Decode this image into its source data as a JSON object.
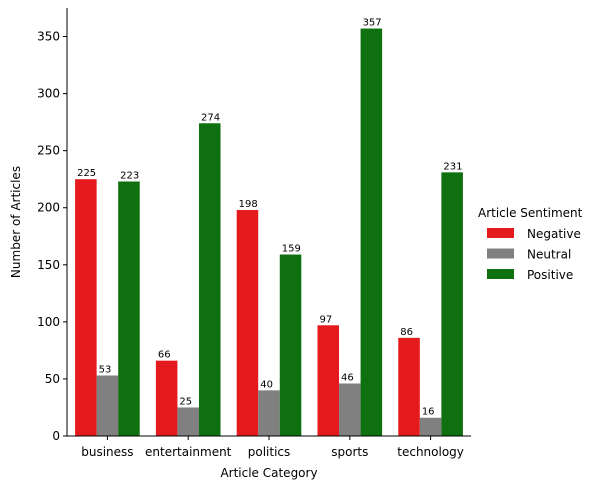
{
  "chart_data": {
    "type": "bar",
    "title": "",
    "xlabel": "Article Category",
    "ylabel": "Number of Articles",
    "categories": [
      "business",
      "entertainment",
      "politics",
      "sports",
      "technology"
    ],
    "series": [
      {
        "name": "Negative",
        "color": "#e41a1c",
        "values": [
          225,
          66,
          198,
          97,
          86
        ]
      },
      {
        "name": "Neutral",
        "color": "#808080",
        "values": [
          53,
          25,
          40,
          46,
          16
        ]
      },
      {
        "name": "Positive",
        "color": "#0f7010",
        "values": [
          223,
          274,
          159,
          357,
          231
        ]
      }
    ],
    "ylim": [
      0,
      375
    ],
    "yticks": [
      0,
      50,
      100,
      150,
      200,
      250,
      300,
      350
    ],
    "data_labels": true,
    "grid": false,
    "legend": {
      "title": "Article Sentiment",
      "placement": "right"
    }
  }
}
